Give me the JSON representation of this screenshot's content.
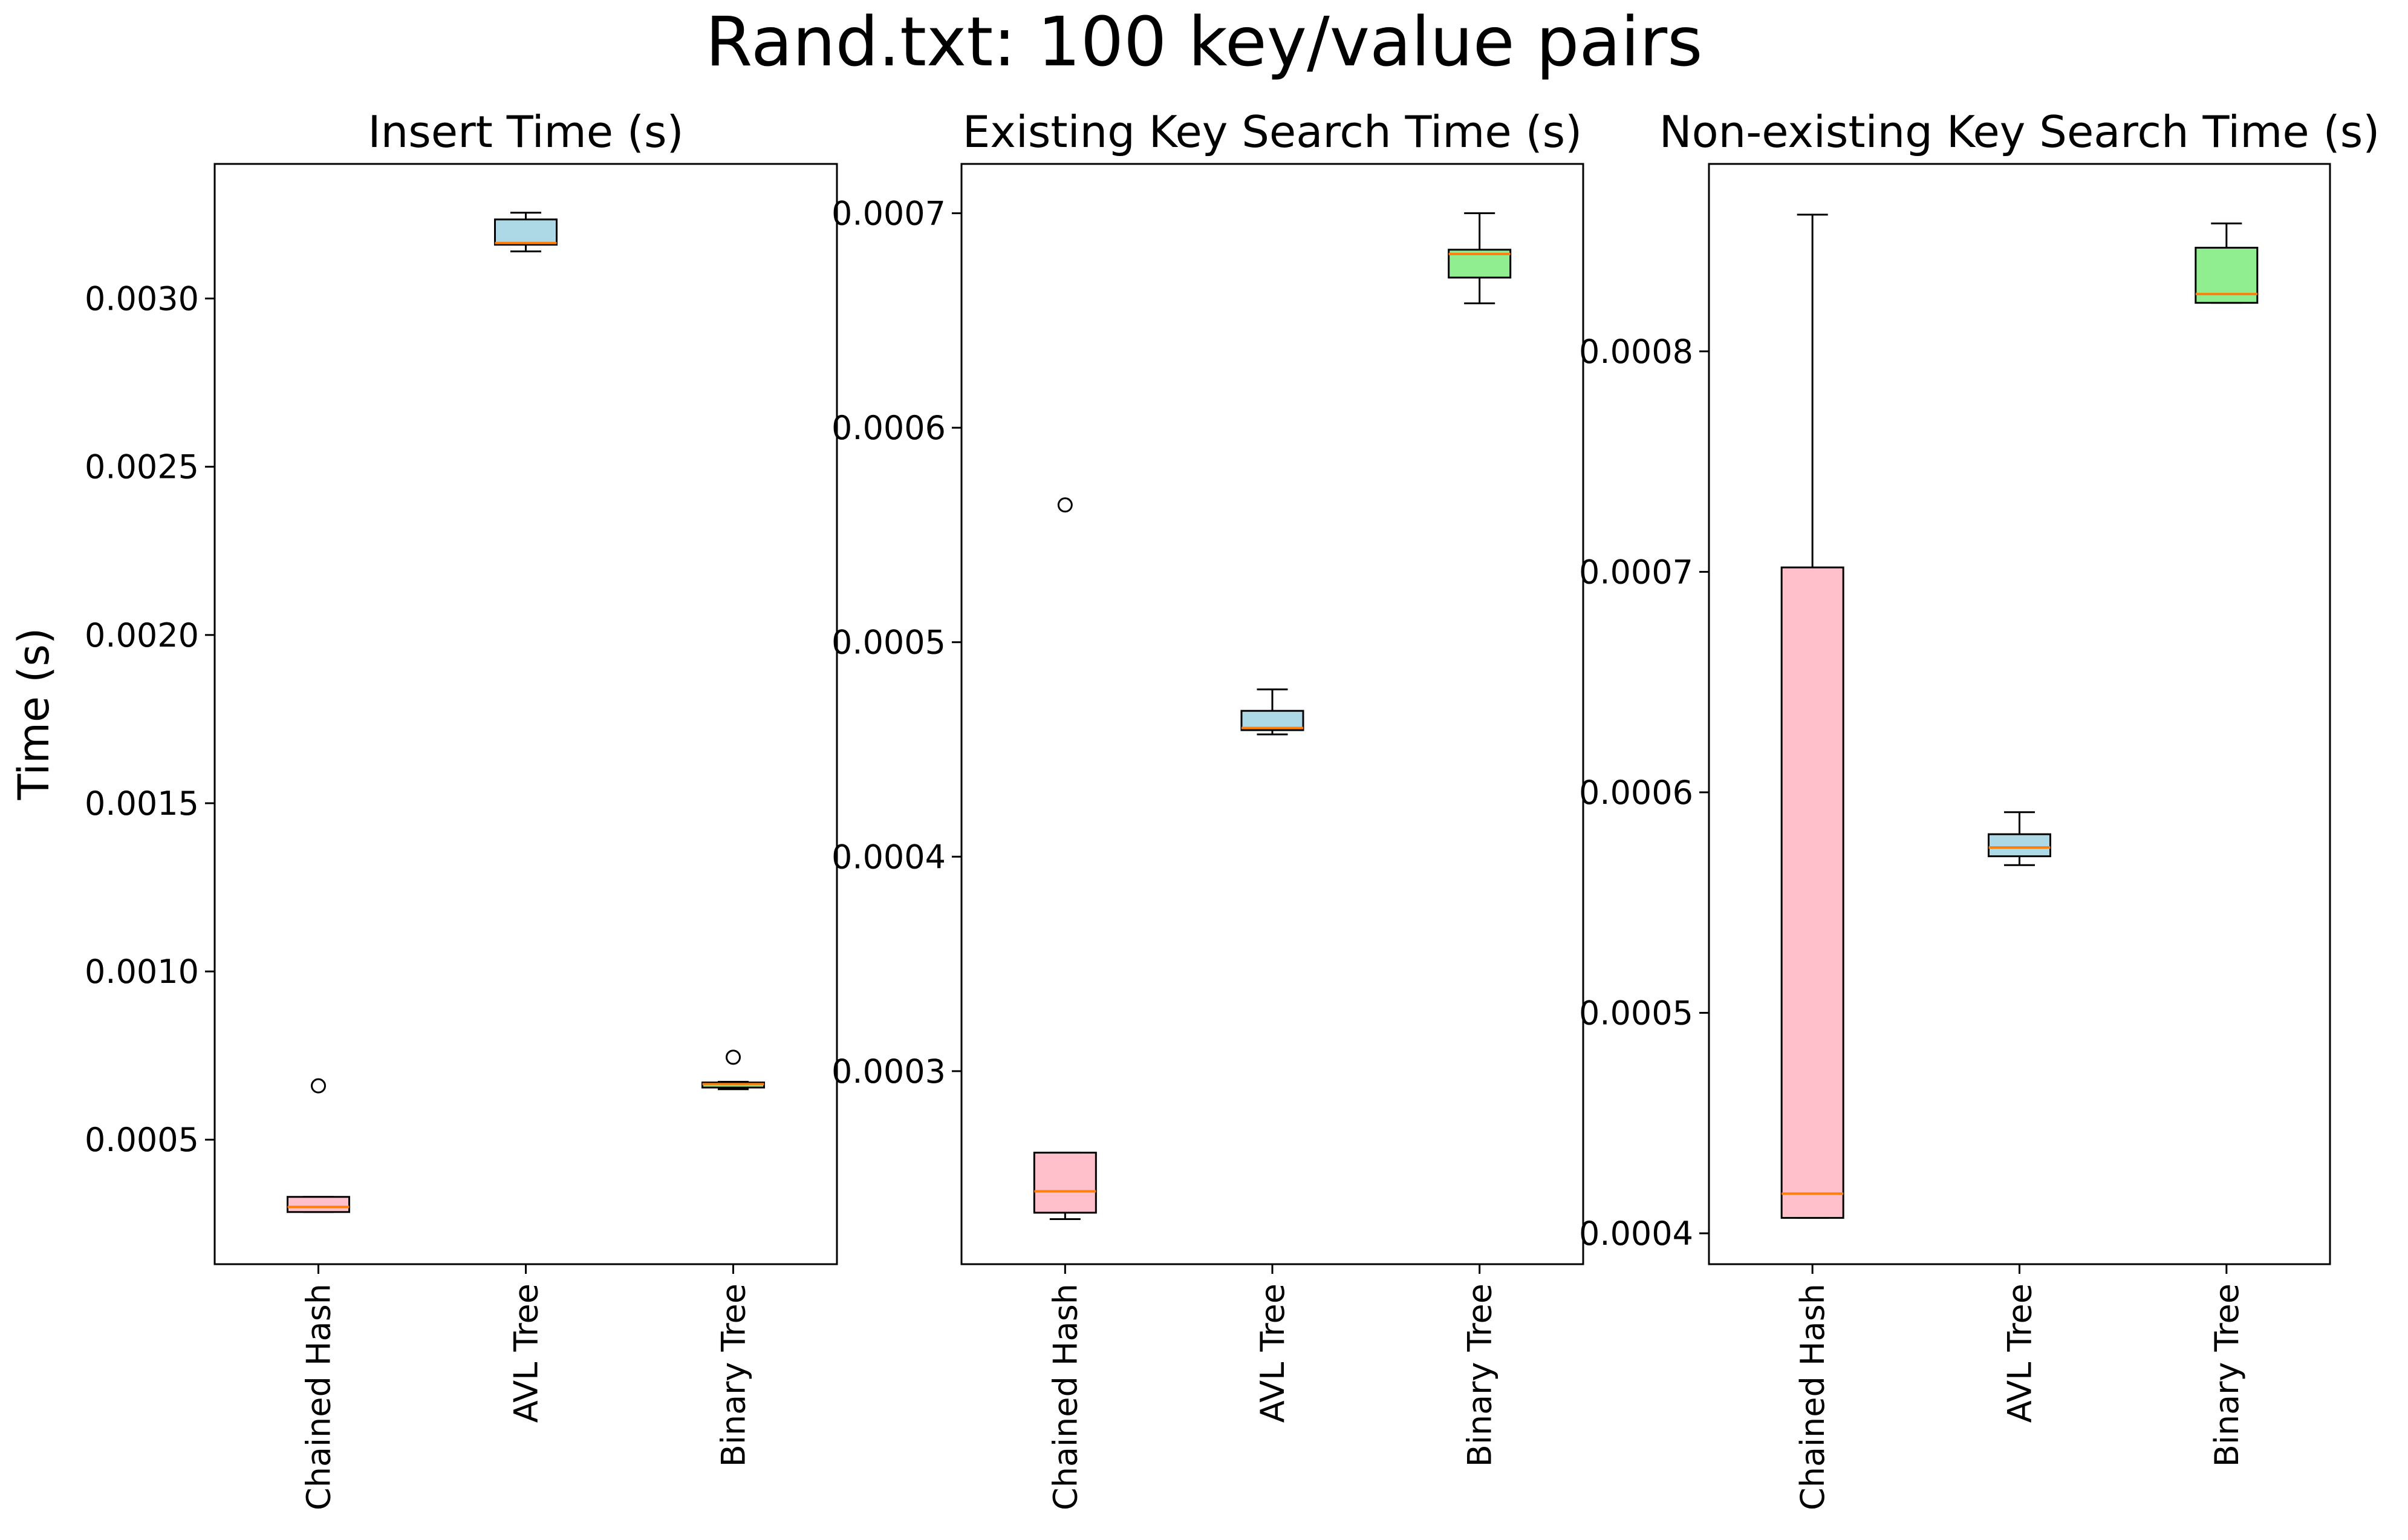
{
  "figure": {
    "title": "Rand.txt: 100 key/value pairs",
    "ylabel": "Time (s)"
  },
  "colors": {
    "axes": "#000000",
    "median": "#ff7f0e",
    "Chained Hash": "#ffc0cb",
    "AVL Tree": "#add8e6",
    "Binary Tree": "#90ee90",
    "background": "#ffffff"
  },
  "chart_data": [
    {
      "type": "box",
      "title": "Insert Time (s)",
      "categories": [
        "Chained Hash",
        "AVL Tree",
        "Binary Tree"
      ],
      "ylim": [
        0.00013,
        0.0034
      ],
      "yticks": [
        0.0005,
        0.001,
        0.0015,
        0.002,
        0.0025,
        0.003
      ],
      "ytick_labels": [
        "0.0005",
        "0.0010",
        "0.0015",
        "0.0020",
        "0.0025",
        "0.0030"
      ],
      "boxes": [
        {
          "category": "Chained Hash",
          "fill": "Chained Hash",
          "whislo": 0.000285,
          "q1": 0.000285,
          "med": 0.0003,
          "q3": 0.00033,
          "whishi": 0.00033,
          "fliers": [
            0.00066
          ]
        },
        {
          "category": "AVL Tree",
          "fill": "AVL Tree",
          "whislo": 0.00314,
          "q1": 0.00316,
          "med": 0.003165,
          "q3": 0.003235,
          "whishi": 0.003255,
          "fliers": []
        },
        {
          "category": "Binary Tree",
          "fill": "Binary Tree",
          "whislo": 0.00065,
          "q1": 0.000655,
          "med": 0.000665,
          "q3": 0.00067,
          "whishi": 0.000672,
          "fliers": [
            0.000745
          ]
        }
      ]
    },
    {
      "type": "box",
      "title": "Existing Key Search Time (s)",
      "categories": [
        "Chained Hash",
        "AVL Tree",
        "Binary Tree"
      ],
      "ylim": [
        0.00021,
        0.000723
      ],
      "yticks": [
        0.0003,
        0.0004,
        0.0005,
        0.0006,
        0.0007
      ],
      "ytick_labels": [
        "0.0003",
        "0.0004",
        "0.0005",
        "0.0006",
        "0.0007"
      ],
      "boxes": [
        {
          "category": "Chained Hash",
          "fill": "Chained Hash",
          "whislo": 0.000231,
          "q1": 0.000234,
          "med": 0.000244,
          "q3": 0.000262,
          "whishi": 0.000262,
          "fliers": [
            0.000564
          ]
        },
        {
          "category": "AVL Tree",
          "fill": "AVL Tree",
          "whislo": 0.000457,
          "q1": 0.000459,
          "med": 0.00046,
          "q3": 0.000468,
          "whishi": 0.000478,
          "fliers": []
        },
        {
          "category": "Binary Tree",
          "fill": "Binary Tree",
          "whislo": 0.000658,
          "q1": 0.00067,
          "med": 0.000681,
          "q3": 0.000683,
          "whishi": 0.0007,
          "fliers": []
        }
      ]
    },
    {
      "type": "box",
      "title": "Non-existing Key Search Time (s)",
      "categories": [
        "Chained Hash",
        "AVL Tree",
        "Binary Tree"
      ],
      "ylim": [
        0.000386,
        0.000885
      ],
      "yticks": [
        0.0004,
        0.0005,
        0.0006,
        0.0007,
        0.0008
      ],
      "ytick_labels": [
        "0.0004",
        "0.0005",
        "0.0006",
        "0.0007",
        "0.0008"
      ],
      "boxes": [
        {
          "category": "Chained Hash",
          "fill": "Chained Hash",
          "whislo": 0.000407,
          "q1": 0.000407,
          "med": 0.000418,
          "q3": 0.000702,
          "whishi": 0.000862,
          "fliers": []
        },
        {
          "category": "AVL Tree",
          "fill": "AVL Tree",
          "whislo": 0.000567,
          "q1": 0.000571,
          "med": 0.000575,
          "q3": 0.000581,
          "whishi": 0.000591,
          "fliers": []
        },
        {
          "category": "Binary Tree",
          "fill": "Binary Tree",
          "whislo": 0.000822,
          "q1": 0.000822,
          "med": 0.000826,
          "q3": 0.000847,
          "whishi": 0.000858,
          "fliers": []
        }
      ]
    }
  ]
}
